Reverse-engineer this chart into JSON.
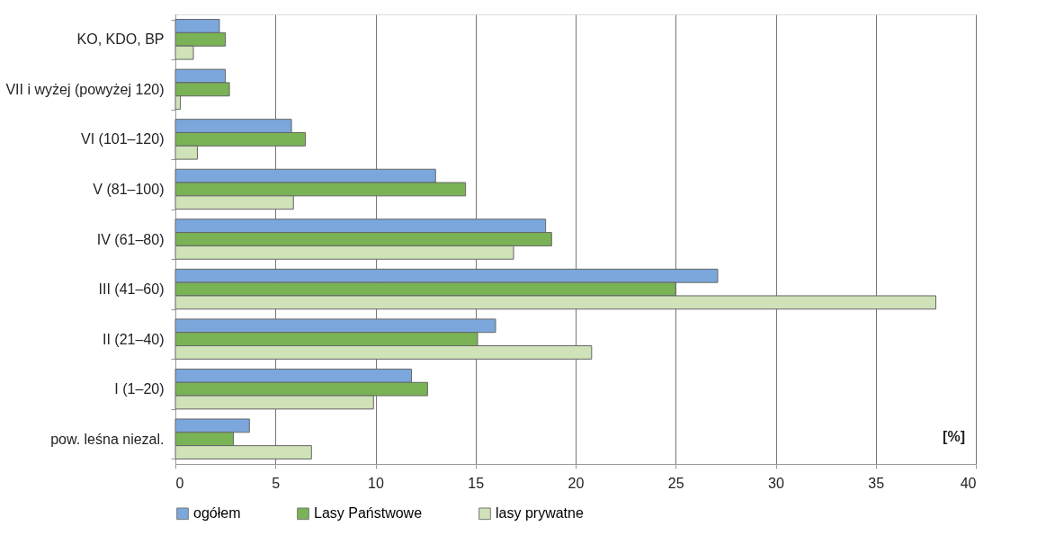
{
  "chart_data": {
    "type": "bar",
    "orientation": "horizontal",
    "categories": [
      "KO, KDO, BP",
      "VII i wyżej (powyżej 120)",
      "VI (101–120)",
      "V (81–100)",
      "IV (61–80)",
      "III (41–60)",
      "II (21–40)",
      "I (1–20)",
      "pow. leśna niezal."
    ],
    "series": [
      {
        "name": "ogółem",
        "color": "#7ba7dc",
        "values": [
          2.2,
          2.5,
          5.8,
          13.0,
          18.5,
          27.1,
          16.0,
          11.8,
          3.7
        ]
      },
      {
        "name": "Lasy Państwowe",
        "color": "#7ab356",
        "values": [
          2.5,
          2.7,
          6.5,
          14.5,
          18.8,
          25.0,
          15.1,
          12.6,
          2.9
        ]
      },
      {
        "name": "lasy prywatne",
        "color": "#cfe2b8",
        "values": [
          0.9,
          0.25,
          1.1,
          5.9,
          16.9,
          38.0,
          20.8,
          9.9,
          6.8
        ]
      }
    ],
    "xlim": [
      0,
      40
    ],
    "xticks": [
      0,
      5,
      10,
      15,
      20,
      25,
      30,
      35,
      40
    ],
    "grid": "x",
    "legend": "bottom",
    "annotations": [
      "[%]"
    ]
  }
}
